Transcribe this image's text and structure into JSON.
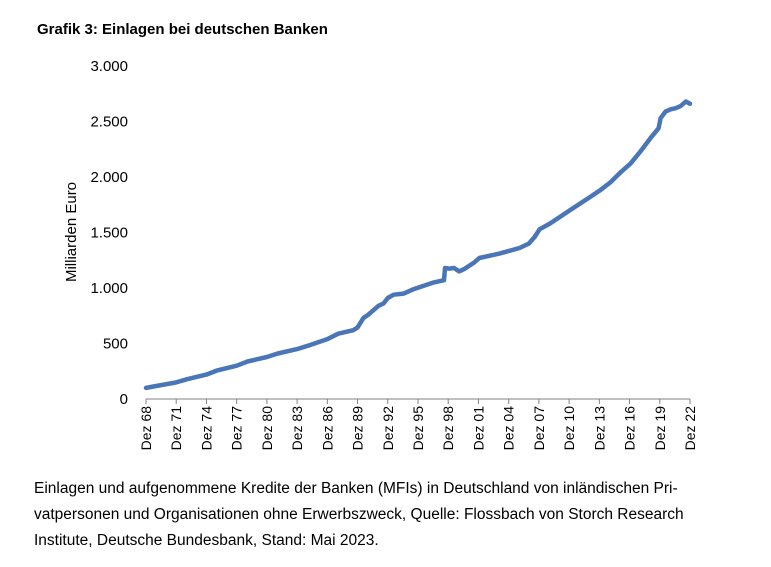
{
  "title": "Grafik 3: Einlagen bei deutschen Banken",
  "caption": "Einlagen und aufgenommene Kredite der Banken (MFIs) in Deutschland von inländischen Pri-vatpersonen und Organisationen ohne Erwerbszweck, Quelle: Flossbach von Storch Research Institute, Deutsche Bundesbank, Stand: Mai 2023.",
  "caption_lines": [
    "Einlagen und aufgenommene Kredite der Banken (MFIs) in Deutschland von inländischen Pri-",
    "vatpersonen und Organisationen ohne Erwerbszweck, Quelle: Flossbach von Storch Research",
    "Institute, Deutsche Bundesbank, Stand: Mai 2023."
  ],
  "chart_data": {
    "type": "line",
    "title": "Grafik 3: Einlagen bei deutschen Banken",
    "xlabel": "",
    "ylabel": "Milliarden Euro",
    "ylim": [
      0,
      3000
    ],
    "yticks": [
      0,
      500,
      1000,
      1500,
      2000,
      2500,
      3000
    ],
    "ytick_labels": [
      "0",
      "500",
      "1.000",
      "1.500",
      "2.000",
      "2.500",
      "3.000"
    ],
    "xlim": [
      1968.92,
      2022.92
    ],
    "xtick_labels": [
      "Dez 68",
      "Dez 71",
      "Dez 74",
      "Dez 77",
      "Dez 80",
      "Dez 83",
      "Dez 86",
      "Dez 89",
      "Dez 92",
      "Dez 95",
      "Dez 98",
      "Dez 01",
      "Dez 04",
      "Dez 07",
      "Dez 10",
      "Dez 13",
      "Dez 16",
      "Dez 19",
      "Dez 22"
    ],
    "xtick_values": [
      1968.92,
      1971.92,
      1974.92,
      1977.92,
      1980.92,
      1983.92,
      1986.92,
      1989.92,
      1992.92,
      1995.92,
      1998.92,
      2001.92,
      2004.92,
      2007.92,
      2010.92,
      2013.92,
      2016.92,
      2019.92,
      2022.92
    ],
    "grid": false,
    "legend": "none",
    "color": "#4a76b8",
    "series": [
      {
        "x": [
          1968.92,
          1970,
          1971.92,
          1973,
          1974.92,
          1976,
          1977.92,
          1979,
          1980.92,
          1982,
          1983.92,
          1985,
          1986.92,
          1988,
          1989.5,
          1989.92,
          1990.5,
          1991,
          1992,
          1992.5,
          1992.92,
          1993.5,
          1994.5,
          1995.5,
          1996.5,
          1997.5,
          1998.5,
          1998.6,
          1999,
          1999.5,
          2000,
          2000.5,
          2001.5,
          2002,
          2003,
          2004,
          2005,
          2006,
          2006.92,
          2007.5,
          2008,
          2009,
          2010,
          2011,
          2012,
          2013,
          2014,
          2015,
          2016,
          2017,
          2018,
          2019,
          2019.8,
          2020,
          2020.5,
          2021,
          2021.5,
          2022,
          2022.5,
          2022.92
        ],
        "values": [
          100,
          118,
          150,
          178,
          220,
          258,
          300,
          338,
          378,
          410,
          450,
          480,
          540,
          588,
          620,
          645,
          730,
          760,
          840,
          860,
          910,
          940,
          950,
          990,
          1020,
          1050,
          1070,
          1180,
          1175,
          1180,
          1150,
          1170,
          1230,
          1270,
          1290,
          1310,
          1335,
          1360,
          1400,
          1460,
          1530,
          1580,
          1640,
          1700,
          1760,
          1820,
          1880,
          1950,
          2040,
          2120,
          2230,
          2350,
          2440,
          2530,
          2590,
          2610,
          2620,
          2640,
          2680,
          2660
        ]
      }
    ]
  }
}
